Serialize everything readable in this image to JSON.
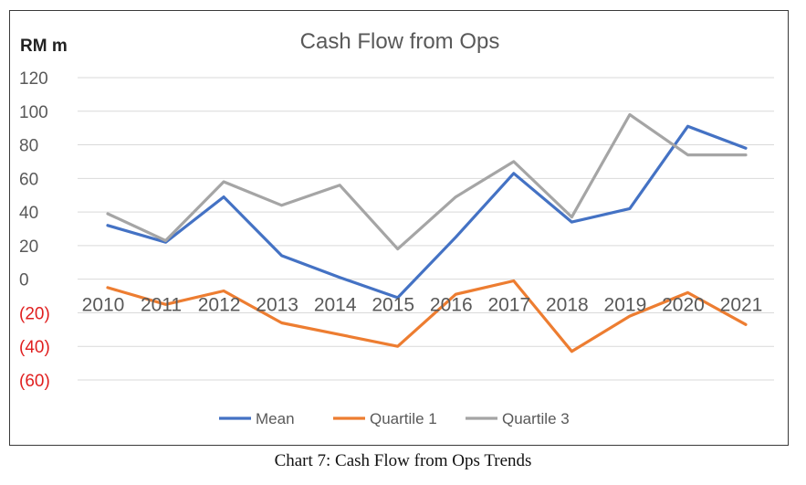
{
  "caption": "Chart 7: Cash Flow from Ops Trends",
  "chart_data": {
    "type": "line",
    "title": "Cash Flow from Ops",
    "ylabel": "RM m",
    "xlabel": "",
    "categories": [
      "2010",
      "2011",
      "2012",
      "2013",
      "2014",
      "2015",
      "2016",
      "2017",
      "2018",
      "2019",
      "2020",
      "2021"
    ],
    "series": [
      {
        "name": "Mean",
        "color": "#4472c4",
        "values": [
          32,
          22,
          49,
          14,
          1,
          -11,
          25,
          63,
          34,
          42,
          91,
          78
        ]
      },
      {
        "name": "Quartile 1",
        "color": "#ed7d31",
        "values": [
          -5,
          -15,
          -7,
          -26,
          -33,
          -40,
          -9,
          -1,
          -43,
          -22,
          -8,
          -27
        ]
      },
      {
        "name": "Quartile 3",
        "color": "#a5a5a5",
        "values": [
          39,
          23,
          58,
          44,
          56,
          18,
          49,
          70,
          37,
          98,
          74,
          74
        ]
      }
    ],
    "ylim": [
      -60,
      120
    ],
    "yticks": [
      120,
      100,
      80,
      60,
      40,
      20,
      0,
      -20,
      -40,
      -60
    ],
    "ytick_labels": [
      "120",
      "100",
      "80",
      "60",
      "40",
      "20",
      "0",
      "(20)",
      "(40)",
      "(60)"
    ],
    "negative_tick_color": "#e01f1f",
    "grid": true,
    "legend_position": "bottom"
  }
}
